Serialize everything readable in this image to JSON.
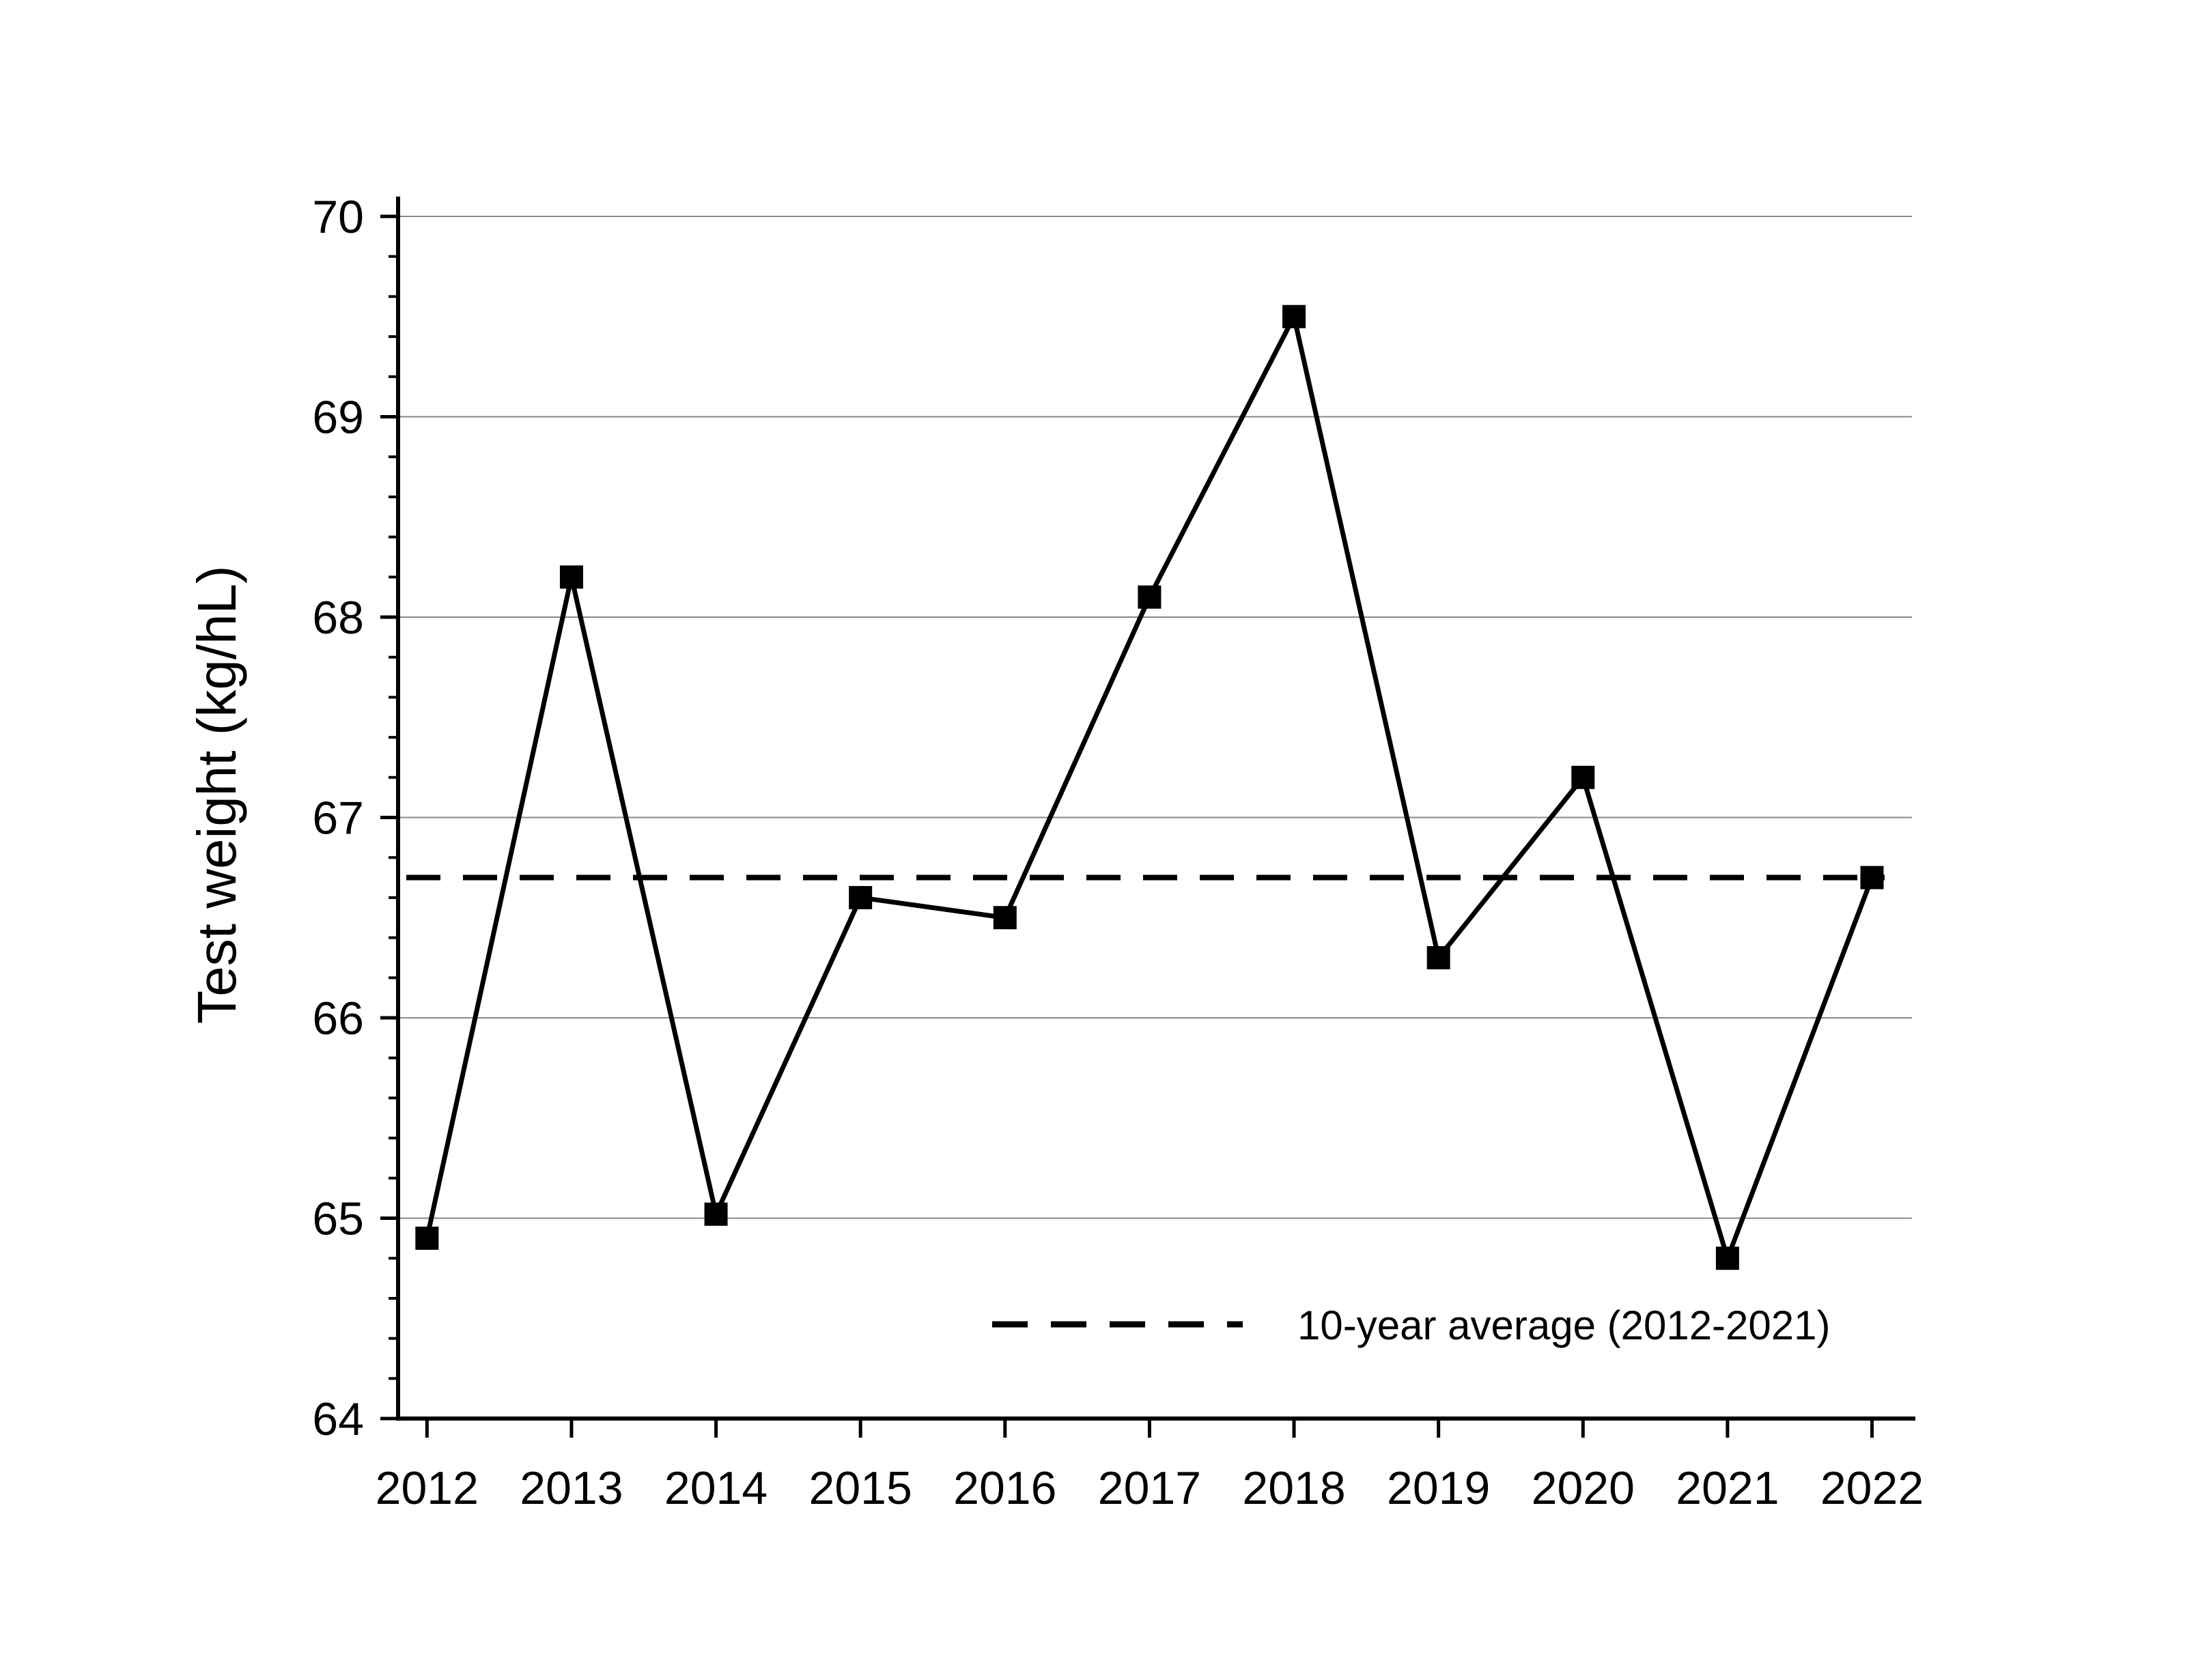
{
  "chart_data": {
    "type": "line",
    "title": "",
    "xlabel": "",
    "ylabel": "Test weight (kg/hL)",
    "x": [
      2012,
      2013,
      2014,
      2015,
      2016,
      2017,
      2018,
      2019,
      2020,
      2021,
      2022
    ],
    "series": [
      {
        "values": [
          64.9,
          68.2,
          65.02,
          66.6,
          66.5,
          68.1,
          69.5,
          66.3,
          67.2,
          64.8,
          66.7
        ],
        "color": "#000000",
        "marker": "square"
      }
    ],
    "reference_line": {
      "name": "10-year average (2012-2021)",
      "value": 66.7,
      "style": "dashed",
      "color": "#000000"
    },
    "xlim": [
      2011.8,
      2022.3
    ],
    "ylim": [
      64,
      70
    ],
    "yticks": [
      64,
      65,
      66,
      67,
      68,
      69,
      70
    ],
    "xticks": [
      2012,
      2013,
      2014,
      2015,
      2016,
      2017,
      2018,
      2019,
      2020,
      2021,
      2022
    ],
    "grid": "horizontal",
    "legend_position": "bottom-right"
  }
}
